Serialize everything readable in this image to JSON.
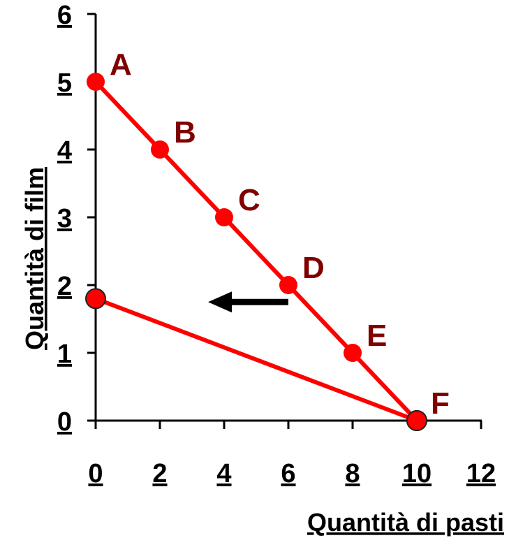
{
  "chart_data": {
    "type": "line",
    "title": "",
    "xlabel": "Quantità di pasti",
    "ylabel": "Quantità di film",
    "xlim": [
      0,
      12
    ],
    "ylim": [
      0,
      6
    ],
    "x_ticks": [
      "0",
      "2",
      "4",
      "6",
      "8",
      "10",
      "12"
    ],
    "y_ticks": [
      "0",
      "1",
      "2",
      "3",
      "4",
      "5",
      "6"
    ],
    "grid": false,
    "series": [
      {
        "color": "#ff0000",
        "points": [
          {
            "label": "A",
            "x": 0,
            "y": 5
          },
          {
            "label": "B",
            "x": 2,
            "y": 4
          },
          {
            "label": "C",
            "x": 4,
            "y": 3
          },
          {
            "label": "D",
            "x": 6,
            "y": 2
          },
          {
            "label": "E",
            "x": 8,
            "y": 1
          },
          {
            "label": "F",
            "x": 10,
            "y": 0
          }
        ]
      },
      {
        "color": "#ff0000",
        "points": [
          {
            "x": 0,
            "y": 1.8
          },
          {
            "x": 10,
            "y": 0
          }
        ]
      }
    ],
    "annotations": [
      {
        "type": "arrow",
        "direction": "left",
        "color": "#000000",
        "from": {
          "x": 6,
          "y": 1.75
        },
        "to": {
          "x": 3.5,
          "y": 1.75
        }
      }
    ]
  }
}
